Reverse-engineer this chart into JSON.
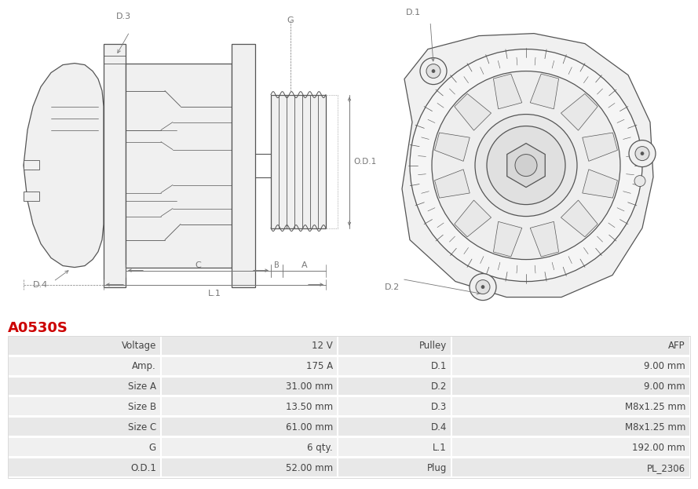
{
  "title": "A0530S",
  "title_color": "#cc0000",
  "bg_color": "#ffffff",
  "rows": [
    [
      "Voltage",
      "12 V",
      "Pulley",
      "AFP"
    ],
    [
      "Amp.",
      "175 A",
      "D.1",
      "9.00 mm"
    ],
    [
      "Size A",
      "31.00 mm",
      "D.2",
      "9.00 mm"
    ],
    [
      "Size B",
      "13.50 mm",
      "D.3",
      "M8x1.25 mm"
    ],
    [
      "Size C",
      "61.00 mm",
      "D.4",
      "M8x1.25 mm"
    ],
    [
      "G",
      "6 qty.",
      "L.1",
      "192.00 mm"
    ],
    [
      "O.D.1",
      "52.00 mm",
      "Plug",
      "PL_2306"
    ]
  ],
  "lc": "#555555",
  "dc": "#777777",
  "fc_none": "none",
  "fc_white": "#ffffff",
  "fc_light": "#f0f0f0"
}
